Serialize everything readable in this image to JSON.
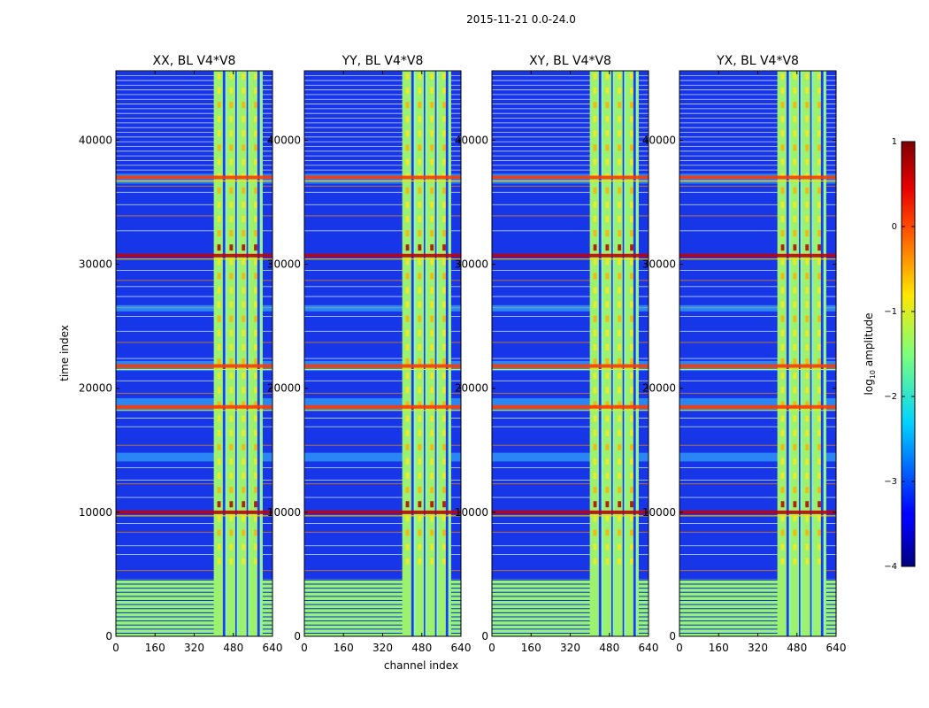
{
  "figure_title": "2015-11-21 0.0-24.0",
  "chart_data": {
    "type": "heatmap",
    "title": "2015-11-21 0.0-24.0",
    "xlabel": "channel index",
    "ylabel": "time index",
    "xlim": [
      0,
      640
    ],
    "ylim": [
      0,
      45600
    ],
    "xticks": [
      0,
      160,
      320,
      480,
      640
    ],
    "yticks": [
      0,
      10000,
      20000,
      30000,
      40000
    ],
    "panels": [
      {
        "title": "XX, BL V4*V8",
        "polarization": "XX"
      },
      {
        "title": "YY, BL V4*V8",
        "polarization": "YY"
      },
      {
        "title": "XY, BL V4*V8",
        "polarization": "XY"
      },
      {
        "title": "YX, BL V4*V8",
        "polarization": "YX"
      }
    ],
    "colorbar": {
      "label": "log10 amplitude",
      "label_main": "log",
      "label_sub": "10",
      "label_rest": " amplitude",
      "range": [
        -4,
        1
      ],
      "ticks": [
        1,
        0,
        -1,
        -2,
        -3,
        -4
      ],
      "tick_labels": [
        "1",
        "0",
        "−1",
        "−2",
        "−3",
        "−4"
      ],
      "colormap": "jet"
    },
    "features": {
      "band_channels": [
        400,
        600
      ],
      "band_gap_channels": [
        [
          437,
          447
        ],
        [
          488,
          494
        ],
        [
          534,
          540
        ],
        [
          578,
          588
        ]
      ],
      "flagged_time_block": [
        0,
        4600
      ],
      "strong_rfi_rows": [
        10000,
        30700,
        18500,
        21800,
        37000
      ]
    }
  }
}
